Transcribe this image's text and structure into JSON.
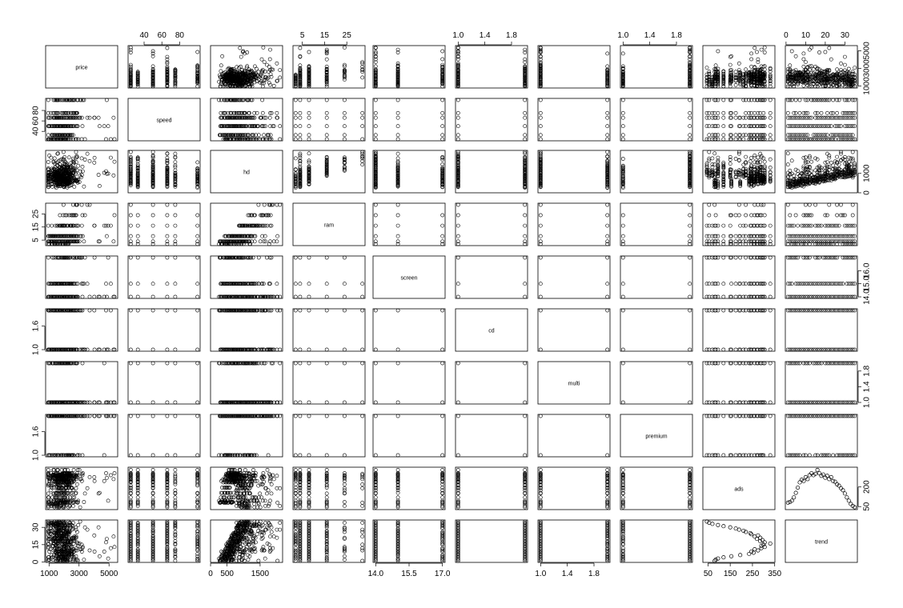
{
  "chart_data": {
    "type": "scatter",
    "title": "",
    "grid": false,
    "variables": [
      "price",
      "speed",
      "hd",
      "ram",
      "screen",
      "cd",
      "multi",
      "premium",
      "ads",
      "trend"
    ],
    "ranges": {
      "price": [
        949,
        5399
      ],
      "speed": [
        25,
        100
      ],
      "hd": [
        80,
        2100
      ],
      "ram": [
        2,
        32
      ],
      "screen": [
        14,
        17
      ],
      "cd": [
        1,
        2
      ],
      "multi": [
        1,
        2
      ],
      "premium": [
        1,
        2
      ],
      "ads": [
        39,
        339
      ],
      "trend": [
        1,
        35
      ]
    },
    "axis_ticks": {
      "price": {
        "side": "bottom",
        "labels": [
          1000,
          3000,
          5000
        ]
      },
      "speed": {
        "side": "top",
        "labels": [
          40,
          60,
          80
        ]
      },
      "hd": {
        "side": "bottom",
        "labels": [
          0,
          500,
          1500
        ]
      },
      "ram": {
        "side": "top",
        "labels": [
          5,
          15,
          25
        ]
      },
      "screen": {
        "side": "bottom",
        "labels": [
          14.0,
          15.5,
          17.0
        ]
      },
      "cd": {
        "side": "top",
        "labels": [
          1.0,
          1.4,
          1.8
        ]
      },
      "multi": {
        "side": "bottom",
        "labels": [
          1.0,
          1.4,
          1.8
        ]
      },
      "premium": {
        "side": "top",
        "labels": [
          1.0,
          1.4,
          1.8
        ]
      },
      "ads": {
        "side": "bottom",
        "labels": [
          50,
          150,
          250,
          350
        ]
      },
      "trend": {
        "side": "top",
        "labels": [
          0,
          10,
          20,
          30
        ]
      }
    },
    "y_ticks": {
      "price": {
        "side": "right",
        "labels": [
          1000,
          3000,
          5000
        ]
      },
      "speed": {
        "side": "left",
        "labels": [
          40,
          60,
          80
        ]
      },
      "hd": {
        "side": "right",
        "labels": [
          0,
          1000
        ]
      },
      "ram": {
        "side": "left",
        "labels": [
          5,
          15,
          25
        ]
      },
      "screen": {
        "side": "right",
        "labels": [
          14.0,
          15.0,
          16.0
        ]
      },
      "cd": {
        "side": "left",
        "labels": [
          1.0,
          1.6
        ]
      },
      "multi": {
        "side": "right",
        "labels": [
          1.0,
          1.4,
          1.8
        ]
      },
      "premium": {
        "side": "left",
        "labels": [
          1.0,
          1.6
        ]
      },
      "ads": {
        "side": "right",
        "labels": [
          50,
          200
        ]
      },
      "trend": {
        "side": "left",
        "labels": [
          0,
          15,
          30
        ]
      }
    },
    "category_values": {
      "speed": [
        25,
        33,
        50,
        66,
        75,
        100
      ],
      "ram": [
        2,
        4,
        8,
        16,
        24,
        32
      ],
      "screen": [
        14,
        15,
        17
      ],
      "cd": [
        1,
        2
      ],
      "multi": [
        1,
        2
      ],
      "premium": [
        1,
        2
      ]
    },
    "ads_by_trend": [
      {
        "x": 1,
        "y": 80
      },
      {
        "x": 2,
        "y": 85
      },
      {
        "x": 3,
        "y": 95
      },
      {
        "x": 4,
        "y": 120
      },
      {
        "x": 5,
        "y": 155
      },
      {
        "x": 6,
        "y": 195
      },
      {
        "x": 7,
        "y": 235
      },
      {
        "x": 8,
        "y": 255
      },
      {
        "x": 9,
        "y": 245
      },
      {
        "x": 10,
        "y": 275
      },
      {
        "x": 11,
        "y": 260
      },
      {
        "x": 12,
        "y": 290
      },
      {
        "x": 13,
        "y": 305
      },
      {
        "x": 14,
        "y": 290
      },
      {
        "x": 15,
        "y": 300
      },
      {
        "x": 16,
        "y": 330
      },
      {
        "x": 17,
        "y": 305
      },
      {
        "x": 18,
        "y": 285
      },
      {
        "x": 19,
        "y": 295
      },
      {
        "x": 20,
        "y": 270
      },
      {
        "x": 21,
        "y": 285
      },
      {
        "x": 22,
        "y": 260
      },
      {
        "x": 23,
        "y": 275
      },
      {
        "x": 24,
        "y": 245
      },
      {
        "x": 25,
        "y": 240
      },
      {
        "x": 26,
        "y": 220
      },
      {
        "x": 27,
        "y": 210
      },
      {
        "x": 28,
        "y": 190
      },
      {
        "x": 29,
        "y": 175
      },
      {
        "x": 30,
        "y": 150
      },
      {
        "x": 31,
        "y": 120
      },
      {
        "x": 32,
        "y": 95
      },
      {
        "x": 33,
        "y": 70
      },
      {
        "x": 34,
        "y": 55
      },
      {
        "x": 35,
        "y": 45
      }
    ]
  }
}
